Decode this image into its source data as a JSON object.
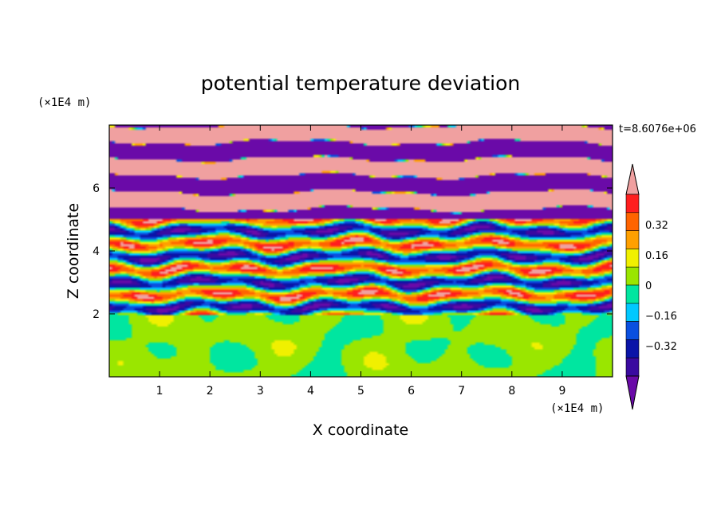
{
  "chart_data": {
    "type": "heatmap",
    "title": "potential temperature deviation",
    "xlabel": "X coordinate",
    "ylabel": "Z coordinate",
    "x_unit": "(×1E4 m)",
    "y_unit": "(×1E4 m)",
    "time_label": "t=8.6076e+06",
    "xlim": [
      0,
      10
    ],
    "ylim": [
      0,
      8
    ],
    "x_ticks": [
      1,
      2,
      3,
      4,
      5,
      6,
      7,
      8,
      9
    ],
    "y_ticks": [
      2,
      4,
      6
    ],
    "colorbar": {
      "levels": [
        -0.48,
        -0.4,
        -0.32,
        -0.24,
        -0.16,
        -0.08,
        0,
        0.08,
        0.16,
        0.24,
        0.32,
        0.4,
        0.48
      ],
      "tick_labels": [
        "0.32",
        "0.16",
        "0",
        "−0.16",
        "−0.32"
      ],
      "tick_values": [
        0.32,
        0.16,
        0,
        -0.16,
        -0.32
      ],
      "colors": [
        "#6a0aa8",
        "#3a0aa0",
        "#0a14a8",
        "#0a50e0",
        "#00c8ff",
        "#00e6a0",
        "#9ae600",
        "#f0f000",
        "#ffa000",
        "#ff6400",
        "#ff1e1e",
        "#f0a0a0"
      ]
    },
    "regions": [
      {
        "z_range": [
          0,
          2
        ],
        "description_value": 0.0
      },
      {
        "z_range": [
          2,
          5
        ],
        "description_value": 0.0
      },
      {
        "z_range": [
          5,
          8
        ],
        "description_value": 0.0
      }
    ]
  }
}
